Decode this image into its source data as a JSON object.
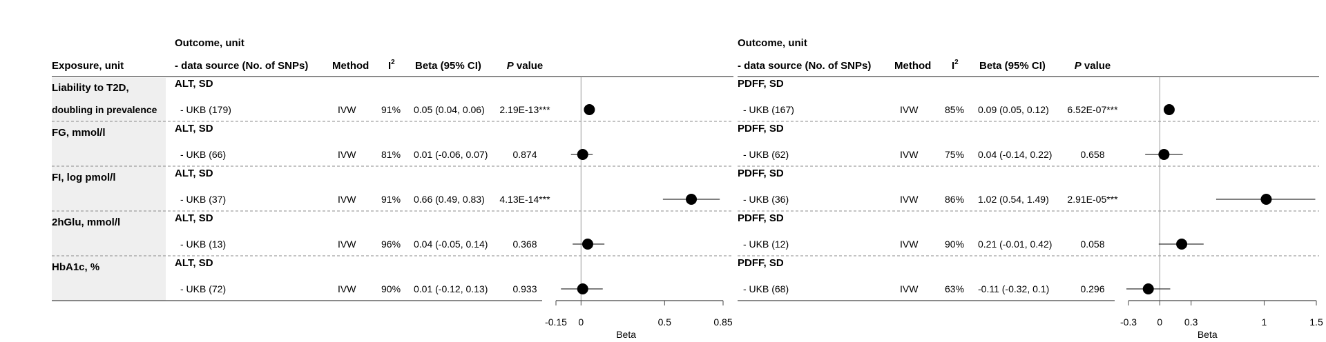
{
  "headers": {
    "exposure": "Exposure, unit",
    "outcome_line1": "Outcome, unit",
    "outcome_line2": "- data source (No. of SNPs)",
    "method": "Method",
    "i2_base": "I",
    "i2_sup": "2",
    "beta_ci": "Beta (95% CI)",
    "p_italic": "P",
    "p_rest": " value"
  },
  "exposures": [
    {
      "line1": "Liability to T2D,",
      "line2": "doubling in prevalence"
    },
    {
      "line1": "FG, mmol/l",
      "line2": ""
    },
    {
      "line1": "FI, log pmol/l",
      "line2": ""
    },
    {
      "line1": "2hGlu, mmol/l",
      "line2": ""
    },
    {
      "line1": "HbA1c, %",
      "line2": ""
    }
  ],
  "chart_data": [
    {
      "type": "forest",
      "outcome": "ALT, SD",
      "xlabel": "Beta",
      "xlim": [
        -0.15,
        0.85
      ],
      "ticks": [
        -0.15,
        0,
        0.5,
        0.85
      ],
      "tick_labels": [
        "-0.15",
        "0",
        "0.5",
        "0.85"
      ],
      "rows": [
        {
          "source": "- UKB (179)",
          "method": "IVW",
          "i2": "91%",
          "ci_text": "0.05 (0.04, 0.06)",
          "p": "2.19E-13***",
          "beta": 0.05,
          "lo": 0.04,
          "hi": 0.06
        },
        {
          "source": "- UKB (66)",
          "method": "IVW",
          "i2": "81%",
          "ci_text": "0.01 (-0.06, 0.07)",
          "p": "0.874",
          "beta": 0.01,
          "lo": -0.06,
          "hi": 0.07
        },
        {
          "source": "- UKB (37)",
          "method": "IVW",
          "i2": "91%",
          "ci_text": "0.66 (0.49, 0.83)",
          "p": "4.13E-14***",
          "beta": 0.66,
          "lo": 0.49,
          "hi": 0.83
        },
        {
          "source": "- UKB (13)",
          "method": "IVW",
          "i2": "96%",
          "ci_text": "0.04 (-0.05, 0.14)",
          "p": "0.368",
          "beta": 0.04,
          "lo": -0.05,
          "hi": 0.14
        },
        {
          "source": "- UKB (72)",
          "method": "IVW",
          "i2": "90%",
          "ci_text": "0.01 (-0.12, 0.13)",
          "p": "0.933",
          "beta": 0.01,
          "lo": -0.12,
          "hi": 0.13
        }
      ]
    },
    {
      "type": "forest",
      "outcome": "PDFF, SD",
      "xlabel": "Beta",
      "xlim": [
        -0.3,
        1.5
      ],
      "ticks": [
        -0.3,
        0,
        0.3,
        1,
        1.5
      ],
      "tick_labels": [
        "-0.3",
        "0",
        "0.3",
        "1",
        "1.5"
      ],
      "rows": [
        {
          "source": "- UKB (167)",
          "method": "IVW",
          "i2": "85%",
          "ci_text": "0.09 (0.05, 0.12)",
          "p": "6.52E-07***",
          "beta": 0.09,
          "lo": 0.05,
          "hi": 0.12
        },
        {
          "source": "- UKB (62)",
          "method": "IVW",
          "i2": "75%",
          "ci_text": "0.04 (-0.14, 0.22)",
          "p": "0.658",
          "beta": 0.04,
          "lo": -0.14,
          "hi": 0.22
        },
        {
          "source": "- UKB (36)",
          "method": "IVW",
          "i2": "86%",
          "ci_text": "1.02 (0.54, 1.49)",
          "p": "2.91E-05***",
          "beta": 1.02,
          "lo": 0.54,
          "hi": 1.49
        },
        {
          "source": "- UKB (12)",
          "method": "IVW",
          "i2": "90%",
          "ci_text": "0.21 (-0.01, 0.42)",
          "p": "0.058",
          "beta": 0.21,
          "lo": -0.01,
          "hi": 0.42
        },
        {
          "source": "- UKB (68)",
          "method": "IVW",
          "i2": "63%",
          "ci_text": "-0.11 (-0.32, 0.1)",
          "p": "0.296",
          "beta": -0.11,
          "lo": -0.32,
          "hi": 0.1
        }
      ]
    }
  ]
}
